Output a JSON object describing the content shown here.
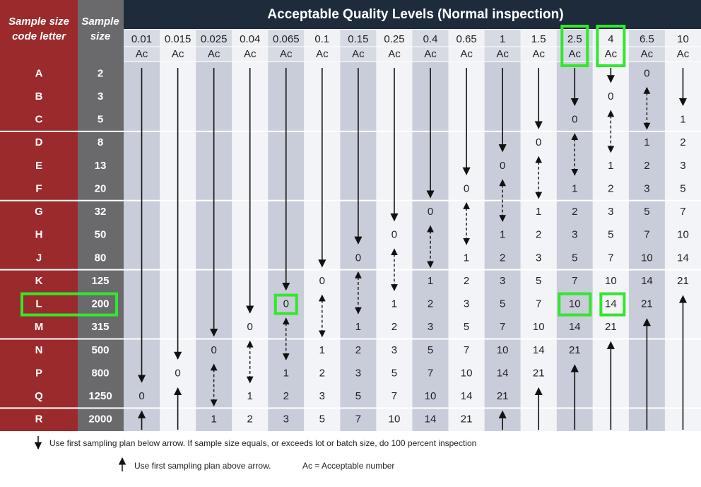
{
  "header": {
    "title": "Acceptable Quality Levels (Normal inspection)",
    "code_letter_label": [
      "Sample size",
      "code letter"
    ],
    "sample_size_label": [
      "Sample",
      "size"
    ],
    "aql_levels": [
      0.01,
      0.015,
      0.025,
      0.04,
      0.065,
      0.1,
      0.15,
      0.25,
      0.4,
      0.65,
      1,
      1.5,
      2.5,
      4,
      6.5,
      10
    ],
    "ac_label": "Ac"
  },
  "rows": [
    {
      "code": "A",
      "sample_size": 2,
      "ac": [
        null,
        null,
        null,
        null,
        null,
        null,
        null,
        null,
        null,
        null,
        null,
        null,
        null,
        null,
        0,
        null
      ]
    },
    {
      "code": "B",
      "sample_size": 3,
      "ac": [
        null,
        null,
        null,
        null,
        null,
        null,
        null,
        null,
        null,
        null,
        null,
        null,
        null,
        0,
        null,
        null
      ]
    },
    {
      "code": "C",
      "sample_size": 5,
      "ac": [
        null,
        null,
        null,
        null,
        null,
        null,
        null,
        null,
        null,
        null,
        null,
        null,
        0,
        null,
        null,
        1
      ]
    },
    {
      "code": "D",
      "sample_size": 8,
      "ac": [
        null,
        null,
        null,
        null,
        null,
        null,
        null,
        null,
        null,
        null,
        null,
        0,
        null,
        null,
        1,
        2
      ]
    },
    {
      "code": "E",
      "sample_size": 13,
      "ac": [
        null,
        null,
        null,
        null,
        null,
        null,
        null,
        null,
        null,
        null,
        0,
        null,
        null,
        1,
        2,
        3
      ]
    },
    {
      "code": "F",
      "sample_size": 20,
      "ac": [
        null,
        null,
        null,
        null,
        null,
        null,
        null,
        null,
        null,
        0,
        null,
        null,
        1,
        2,
        3,
        5
      ]
    },
    {
      "code": "G",
      "sample_size": 32,
      "ac": [
        null,
        null,
        null,
        null,
        null,
        null,
        null,
        null,
        0,
        null,
        null,
        1,
        2,
        3,
        5,
        7
      ]
    },
    {
      "code": "H",
      "sample_size": 50,
      "ac": [
        null,
        null,
        null,
        null,
        null,
        null,
        null,
        0,
        null,
        null,
        1,
        2,
        3,
        5,
        7,
        10
      ]
    },
    {
      "code": "J",
      "sample_size": 80,
      "ac": [
        null,
        null,
        null,
        null,
        null,
        null,
        0,
        null,
        null,
        1,
        2,
        3,
        5,
        7,
        10,
        14
      ]
    },
    {
      "code": "K",
      "sample_size": 125,
      "ac": [
        null,
        null,
        null,
        null,
        null,
        0,
        null,
        null,
        1,
        2,
        3,
        5,
        7,
        10,
        14,
        21
      ]
    },
    {
      "code": "L",
      "sample_size": 200,
      "ac": [
        null,
        null,
        null,
        null,
        0,
        null,
        null,
        1,
        2,
        3,
        5,
        7,
        10,
        14,
        21,
        null
      ]
    },
    {
      "code": "M",
      "sample_size": 315,
      "ac": [
        null,
        null,
        null,
        0,
        null,
        null,
        1,
        2,
        3,
        5,
        7,
        10,
        14,
        21,
        null,
        null
      ]
    },
    {
      "code": "N",
      "sample_size": 500,
      "ac": [
        null,
        null,
        0,
        null,
        null,
        1,
        2,
        3,
        5,
        7,
        10,
        14,
        21,
        null,
        null,
        null
      ]
    },
    {
      "code": "P",
      "sample_size": 800,
      "ac": [
        null,
        0,
        null,
        null,
        1,
        2,
        3,
        5,
        7,
        10,
        14,
        21,
        null,
        null,
        null,
        null
      ]
    },
    {
      "code": "Q",
      "sample_size": 1250,
      "ac": [
        0,
        null,
        null,
        1,
        2,
        3,
        5,
        7,
        10,
        14,
        21,
        null,
        null,
        null,
        null,
        null
      ]
    },
    {
      "code": "R",
      "sample_size": 2000,
      "ac": [
        null,
        null,
        1,
        2,
        3,
        5,
        7,
        10,
        14,
        21,
        null,
        null,
        null,
        null,
        null,
        null
      ]
    }
  ],
  "legend": {
    "below": "Use first sampling plan below arrow. If sample size equals, or exceeds lot or batch size, do 100 percent inspection",
    "above": "Use first sampling plan above arrow.",
    "ac_note": "Ac = Acceptable number"
  }
}
